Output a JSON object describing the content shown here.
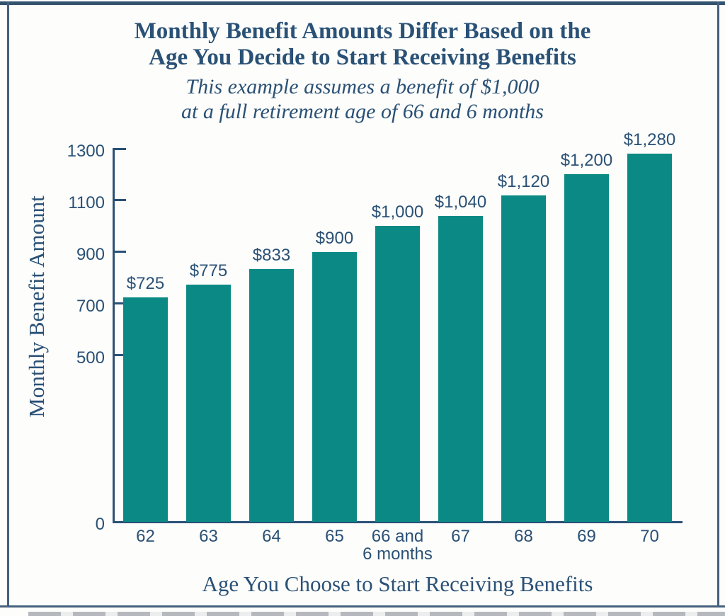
{
  "chart_data": {
    "type": "bar",
    "title_lines": [
      "Monthly Benefit Amounts Differ Based on the",
      "Age You Decide to Start Receiving Benefits"
    ],
    "subtitle_lines": [
      "This example assumes a benefit of $1,000",
      "at a full retirement age of 66 and 6 months"
    ],
    "ylabel": "Monthly Benefit Amount",
    "xlabel": "Age You Choose to Start Receiving Benefits",
    "categories": [
      "62",
      "63",
      "64",
      "65",
      "66 and\n6 months",
      "67",
      "68",
      "69",
      "70"
    ],
    "values": [
      725,
      775,
      833,
      900,
      1000,
      1040,
      1120,
      1200,
      1280
    ],
    "value_labels": [
      "$725",
      "$775",
      "$833",
      "$900",
      "$1,000",
      "$1,040",
      "$1,120",
      "$1,200",
      "$1,280"
    ],
    "yticks": [
      0,
      500,
      700,
      900,
      1100,
      1300
    ],
    "ylim": [
      0,
      1300
    ],
    "grid": false,
    "legend": false,
    "axis_scale": "broken-linear: 0-500 spans lower ~45% of axis height; equal 200-unit steps from 500 to 1300 above",
    "colors": {
      "bar": "#0b8a85",
      "text": "#2a5176",
      "frame_border": "#46607e",
      "background": "#fdfdfb"
    }
  }
}
